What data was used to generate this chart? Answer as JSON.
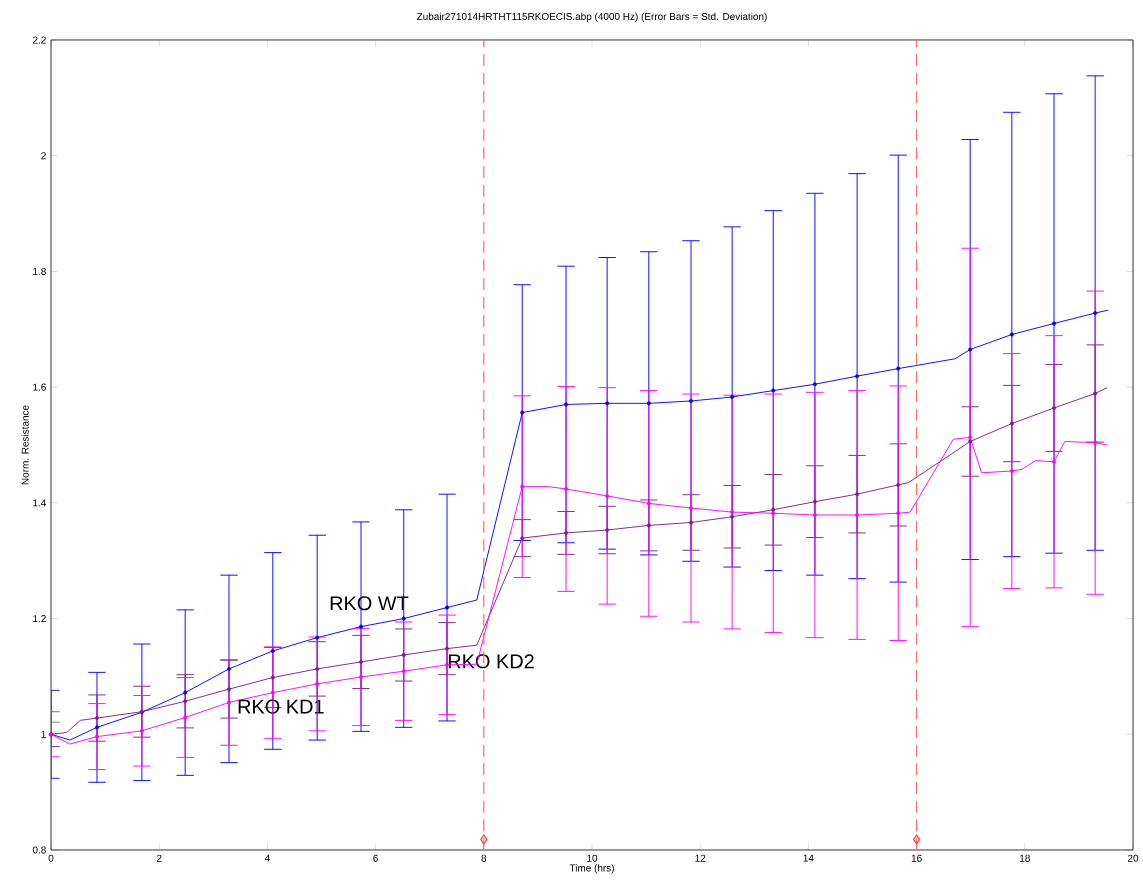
{
  "chart_data": {
    "type": "line",
    "title": "Zubair271014HRTHT115RKOECIS.abp (4000 Hz) (Error Bars = Std. Deviation)",
    "xlabel": "Time (hrs)",
    "ylabel": "Norm. Resistance",
    "xlim": [
      0,
      20
    ],
    "xticks": [
      0,
      2,
      4,
      6,
      8,
      10,
      12,
      14,
      16,
      18,
      20
    ],
    "ylim": [
      0.8,
      2.2
    ],
    "yticks": [
      0.8,
      1,
      1.2,
      1.4,
      1.6,
      1.8,
      2,
      2.2
    ],
    "marker": "circle",
    "line_style": "solid",
    "series": [
      {
        "name": "RKO WT",
        "color": "#0000ff",
        "x": [
          0,
          0.35,
          0.85,
          1.68,
          2.48,
          3.29,
          4.1,
          4.92,
          5.73,
          6.52,
          7.32,
          7.87,
          8.71,
          9.52,
          10.28,
          11.05,
          11.83,
          12.59,
          13.35,
          14.12,
          14.9,
          15.66,
          16.71,
          16.99,
          17.76,
          18.54,
          19.3,
          19.54
        ],
        "values": [
          1.0,
          0.99,
          1.012,
          1.038,
          1.072,
          1.113,
          1.144,
          1.167,
          1.186,
          1.2,
          1.219,
          1.232,
          1.556,
          1.57,
          1.572,
          1.572,
          1.576,
          1.583,
          1.594,
          1.605,
          1.619,
          1.632,
          1.649,
          1.665,
          1.691,
          1.71,
          1.728,
          1.733
        ],
        "errors": [
          0.076,
          null,
          0.095,
          0.118,
          0.143,
          0.162,
          0.17,
          0.177,
          0.181,
          0.188,
          0.196,
          null,
          0.221,
          0.239,
          0.252,
          0.262,
          0.277,
          0.294,
          0.311,
          0.33,
          0.35,
          0.369,
          null,
          0.363,
          0.384,
          0.397,
          0.41,
          null
        ]
      },
      {
        "name": "RKO KD2",
        "color": "#7f1f7f",
        "x": [
          0,
          0.29,
          0.54,
          0.85,
          1.68,
          2.48,
          3.29,
          4.1,
          4.92,
          5.73,
          6.52,
          7.32,
          7.87,
          8.71,
          9.52,
          10.28,
          11.05,
          11.83,
          12.59,
          13.35,
          14.12,
          14.9,
          15.66,
          15.85,
          16.99,
          17.76,
          18.54,
          19.3,
          19.52
        ],
        "values": [
          1.0,
          1.003,
          1.024,
          1.028,
          1.039,
          1.057,
          1.078,
          1.098,
          1.113,
          1.125,
          1.137,
          1.148,
          1.154,
          1.339,
          1.348,
          1.353,
          1.361,
          1.366,
          1.376,
          1.388,
          1.402,
          1.415,
          1.431,
          1.435,
          1.506,
          1.537,
          1.564,
          1.589,
          1.599
        ],
        "errors": [
          0.021,
          null,
          null,
          0.04,
          0.044,
          0.046,
          0.05,
          0.052,
          0.047,
          0.046,
          0.045,
          0.045,
          null,
          0.032,
          0.037,
          0.041,
          0.044,
          0.048,
          0.054,
          0.061,
          0.062,
          0.067,
          0.071,
          null,
          0.06,
          0.066,
          0.075,
          0.084,
          null
        ]
      },
      {
        "name": "RKO KD1",
        "color": "#ff00ff",
        "x": [
          0,
          0.35,
          0.85,
          1.68,
          2.48,
          3.29,
          4.1,
          4.92,
          5.73,
          6.52,
          7.32,
          7.87,
          8.71,
          9.19,
          9.52,
          10.28,
          11.05,
          11.83,
          12.59,
          13.35,
          14.12,
          14.9,
          15.66,
          15.88,
          16.68,
          16.99,
          17.2,
          17.76,
          17.95,
          18.2,
          18.54,
          18.74,
          19.3,
          19.52
        ],
        "values": [
          1.0,
          0.983,
          0.996,
          1.006,
          1.029,
          1.055,
          1.072,
          1.087,
          1.099,
          1.109,
          1.12,
          1.121,
          1.428,
          1.428,
          1.424,
          1.412,
          1.399,
          1.391,
          1.384,
          1.382,
          1.379,
          1.379,
          1.382,
          1.384,
          1.51,
          1.513,
          1.452,
          1.455,
          1.458,
          1.473,
          1.471,
          1.506,
          1.504,
          1.5
        ],
        "errors": [
          0.039,
          null,
          0.057,
          0.061,
          0.069,
          0.074,
          0.079,
          0.081,
          0.084,
          0.085,
          0.086,
          null,
          0.157,
          null,
          0.177,
          0.187,
          0.195,
          0.197,
          0.202,
          0.206,
          0.212,
          0.215,
          0.22,
          null,
          null,
          0.327,
          null,
          0.203,
          null,
          null,
          0.218,
          null,
          0.262,
          null
        ]
      }
    ],
    "ref_lines": [
      {
        "axis": "x",
        "value": 8,
        "color": "#ff6a6a",
        "line_style": "dashed"
      },
      {
        "axis": "x",
        "value": 16,
        "color": "#ff6a6a",
        "line_style": "dashed"
      }
    ]
  }
}
